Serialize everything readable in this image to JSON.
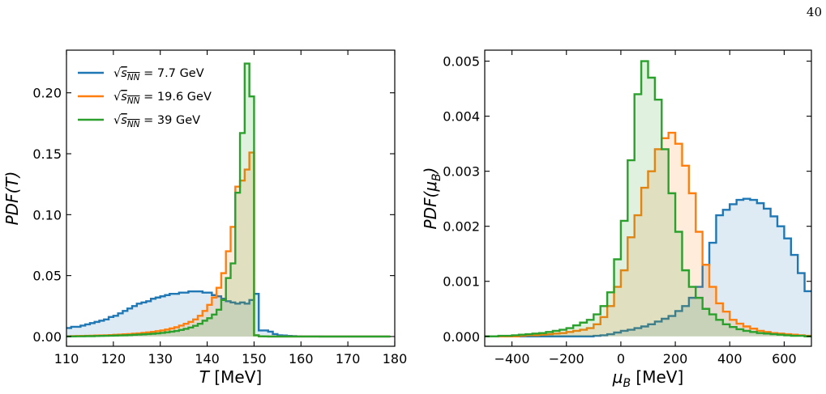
{
  "page_number": "40",
  "chart_data": [
    {
      "type": "line",
      "subtype": "step-histogram-filled",
      "title": "",
      "xlabel": "T [MeV]",
      "ylabel": "PDF(T)",
      "xlim": [
        110,
        180
      ],
      "ylim": [
        -0.008,
        0.235
      ],
      "xticks": [
        110,
        120,
        130,
        140,
        150,
        160,
        170,
        180
      ],
      "xtick_labels": [
        "110",
        "120",
        "130",
        "140",
        "150",
        "160",
        "170",
        "180"
      ],
      "yticks": [
        0.0,
        0.05,
        0.1,
        0.15,
        0.2
      ],
      "ytick_labels": [
        "0.00",
        "0.05",
        "0.10",
        "0.15",
        "0.20"
      ],
      "grid": false,
      "legend": "top-left",
      "x_edges": [
        110,
        111,
        112,
        113,
        114,
        115,
        116,
        117,
        118,
        119,
        120,
        121,
        122,
        123,
        124,
        125,
        126,
        127,
        128,
        129,
        130,
        131,
        132,
        133,
        134,
        135,
        136,
        137,
        138,
        139,
        140,
        141,
        142,
        143,
        144,
        145,
        146,
        147,
        148,
        149,
        150,
        151,
        152,
        153,
        154,
        155,
        156,
        157,
        158,
        159,
        160,
        161,
        162,
        163,
        164,
        165,
        166,
        167,
        168,
        169,
        170,
        171,
        172,
        173,
        174,
        175,
        176,
        177,
        178,
        179
      ],
      "series": [
        {
          "name": "√sNN = 7.7 GeV",
          "color": "#1f77b4",
          "values": [
            0.007,
            0.008,
            0.008,
            0.009,
            0.01,
            0.011,
            0.012,
            0.013,
            0.014,
            0.016,
            0.017,
            0.019,
            0.021,
            0.023,
            0.025,
            0.027,
            0.028,
            0.029,
            0.031,
            0.032,
            0.033,
            0.034,
            0.035,
            0.035,
            0.036,
            0.036,
            0.037,
            0.037,
            0.037,
            0.036,
            0.036,
            0.034,
            0.033,
            0.031,
            0.029,
            0.028,
            0.027,
            0.028,
            0.027,
            0.03,
            0.035,
            0.005,
            0.005,
            0.004,
            0.002,
            0.001,
            0.0008,
            0.0005,
            0.0003,
            0.0002,
            0.0001,
            0.0001,
            0.0001,
            0.0001,
            0.0,
            0.0,
            0.0,
            0.0,
            0.0,
            0.0,
            0.0,
            0.0,
            0.0,
            0.0,
            0.0,
            0.0,
            0.0,
            0.0,
            0.0
          ]
        },
        {
          "name": "√sNN = 19.6 GeV",
          "color": "#ff7f0e",
          "values": [
            0.0002,
            0.0003,
            0.0004,
            0.0005,
            0.0006,
            0.0007,
            0.0008,
            0.0009,
            0.001,
            0.0012,
            0.0014,
            0.0016,
            0.0018,
            0.002,
            0.0023,
            0.0026,
            0.003,
            0.0034,
            0.0038,
            0.0044,
            0.005,
            0.0057,
            0.0066,
            0.0076,
            0.009,
            0.0105,
            0.012,
            0.014,
            0.017,
            0.021,
            0.026,
            0.032,
            0.04,
            0.052,
            0.07,
            0.09,
            0.123,
            0.128,
            0.137,
            0.151,
            0.001,
            0.0002,
            0.0001,
            0.0,
            0.0,
            0.0,
            0.0,
            0.0,
            0.0,
            0.0,
            0.0,
            0.0,
            0.0,
            0.0,
            0.0,
            0.0,
            0.0,
            0.0,
            0.0,
            0.0,
            0.0,
            0.0,
            0.0,
            0.0,
            0.0,
            0.0,
            0.0,
            0.0,
            0.0
          ]
        },
        {
          "name": "√sNN = 39 GeV",
          "color": "#2ca02c",
          "values": [
            0.0001,
            0.0001,
            0.0002,
            0.0002,
            0.0003,
            0.0003,
            0.0004,
            0.0005,
            0.0006,
            0.0007,
            0.0008,
            0.0009,
            0.001,
            0.0012,
            0.0014,
            0.0016,
            0.0018,
            0.002,
            0.0023,
            0.0026,
            0.003,
            0.0035,
            0.004,
            0.0046,
            0.0054,
            0.0063,
            0.0074,
            0.0088,
            0.0105,
            0.013,
            0.015,
            0.018,
            0.022,
            0.03,
            0.048,
            0.06,
            0.118,
            0.167,
            0.224,
            0.197,
            0.001,
            0.0002,
            0.0001,
            0.0,
            0.0,
            0.0,
            0.0,
            0.0,
            0.0,
            0.0,
            0.0,
            0.0,
            0.0,
            0.0,
            0.0,
            0.0,
            0.0,
            0.0,
            0.0,
            0.0,
            0.0,
            0.0,
            0.0,
            0.0,
            0.0,
            0.0,
            0.0,
            0.0,
            0.0
          ]
        }
      ]
    },
    {
      "type": "line",
      "subtype": "step-histogram-filled",
      "title": "",
      "xlabel": "μB [MeV]",
      "ylabel": "PDF(μB)",
      "xlim": [
        -500,
        700
      ],
      "ylim": [
        -0.00018,
        0.0052
      ],
      "xticks": [
        -400,
        -200,
        0,
        200,
        400,
        600
      ],
      "xtick_labels": [
        "−400",
        "−200",
        "0",
        "200",
        "400",
        "600"
      ],
      "yticks": [
        0.0,
        0.001,
        0.002,
        0.003,
        0.004,
        0.005
      ],
      "ytick_labels": [
        "0.000",
        "0.001",
        "0.002",
        "0.003",
        "0.004",
        "0.005"
      ],
      "grid": false,
      "legend": "none",
      "x_edges": [
        -500,
        -475,
        -450,
        -425,
        -400,
        -375,
        -350,
        -325,
        -300,
        -275,
        -250,
        -225,
        -200,
        -175,
        -150,
        -125,
        -100,
        -75,
        -50,
        -25,
        0,
        25,
        50,
        75,
        100,
        125,
        150,
        175,
        200,
        225,
        250,
        275,
        300,
        325,
        350,
        375,
        400,
        425,
        450,
        475,
        500,
        525,
        550,
        575,
        600,
        625,
        650,
        675,
        700
      ],
      "series": [
        {
          "name": "√sNN = 7.7 GeV",
          "color": "#1f77b4",
          "values": [
            0.0,
            0.0,
            0.0,
            0.0,
            0.0,
            0.0,
            0.0,
            0.0,
            0.0,
            0.0,
            0.0,
            0.0,
            0.0,
            0.0,
            0.0,
            0.0,
            1e-05,
            2e-05,
            4e-05,
            7e-05,
            0.0001,
            0.00012,
            0.00015,
            0.00018,
            0.00022,
            0.00027,
            0.00032,
            0.00037,
            0.00046,
            0.00055,
            0.0007,
            0.0009,
            0.0013,
            0.0017,
            0.0022,
            0.0023,
            0.0024,
            0.00248,
            0.0025,
            0.00248,
            0.00242,
            0.00232,
            0.00218,
            0.002,
            0.00178,
            0.00148,
            0.00115,
            0.00082
          ]
        },
        {
          "name": "√sNN = 19.6 GeV",
          "color": "#ff7f0e",
          "values": [
            0.0,
            0.0,
            0.0,
            0.0,
            0.0,
            1e-05,
            2e-05,
            2e-05,
            3e-05,
            4e-05,
            5e-05,
            6e-05,
            8e-05,
            0.0001,
            0.00012,
            0.00015,
            0.00022,
            0.00035,
            0.00055,
            0.0009,
            0.0012,
            0.0018,
            0.0022,
            0.0027,
            0.003,
            0.0034,
            0.0036,
            0.0037,
            0.0035,
            0.0031,
            0.0026,
            0.0019,
            0.0013,
            0.0009,
            0.0006,
            0.00045,
            0.0003,
            0.00023,
            0.00018,
            0.00014,
            0.0001,
            8e-05,
            6e-05,
            5e-05,
            4e-05,
            3e-05,
            2e-05,
            1e-05
          ]
        },
        {
          "name": "√sNN = 39 GeV",
          "color": "#2ca02c",
          "values": [
            0.0,
            0.0,
            1e-05,
            1e-05,
            2e-05,
            3e-05,
            4e-05,
            5e-05,
            6e-05,
            8e-05,
            0.0001,
            0.00012,
            0.00015,
            0.0002,
            0.00025,
            0.0003,
            0.0004,
            0.00055,
            0.0008,
            0.0014,
            0.0021,
            0.0032,
            0.0044,
            0.005,
            0.0047,
            0.0043,
            0.0034,
            0.0026,
            0.0019,
            0.0012,
            0.0009,
            0.0007,
            0.0005,
            0.0004,
            0.0003,
            0.00022,
            0.00017,
            0.00013,
            0.0001,
            8e-05,
            6e-05,
            5e-05,
            4e-05,
            3e-05,
            2e-05,
            1e-05,
            1e-05,
            0.0
          ]
        }
      ]
    }
  ]
}
